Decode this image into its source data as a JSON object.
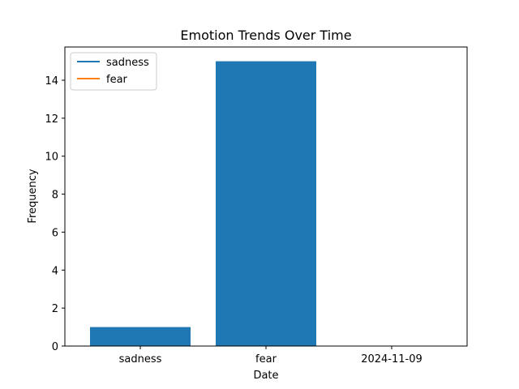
{
  "chart_data": {
    "type": "bar",
    "title": "Emotion Trends Over Time",
    "xlabel": "Date",
    "ylabel": "Frequency",
    "categories": [
      "sadness",
      "fear",
      "2024-11-09"
    ],
    "values": [
      1,
      15,
      0
    ],
    "ylim": [
      0,
      15.75
    ],
    "yticks": [
      "0",
      "2",
      "4",
      "6",
      "8",
      "10",
      "12",
      "14"
    ],
    "bar_color": "#1f77b4",
    "grid": false,
    "legend": {
      "placement": "upper-left",
      "entries": [
        {
          "label": "sadness",
          "color": "#1f77b4"
        },
        {
          "label": "fear",
          "color": "#ff7f0e"
        }
      ]
    }
  }
}
